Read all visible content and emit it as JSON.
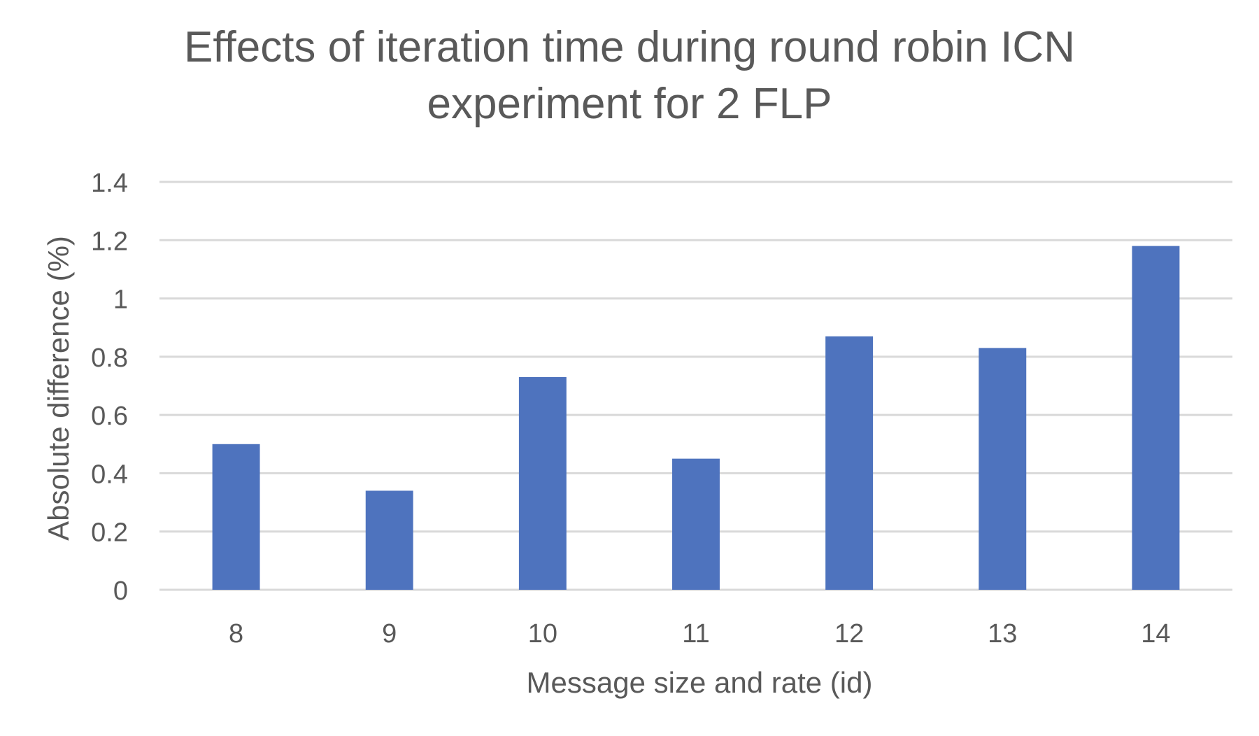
{
  "chart_data": {
    "type": "bar",
    "title": "Effects of iteration time during round robin ICN\nexperiment for 2 FLP",
    "xlabel": "Message size and rate (id)",
    "ylabel": "Absolute difference (%)",
    "categories": [
      "8",
      "9",
      "10",
      "11",
      "12",
      "13",
      "14"
    ],
    "values": [
      0.5,
      0.34,
      0.73,
      0.45,
      0.87,
      0.83,
      1.18
    ],
    "ylim": [
      0,
      1.4
    ],
    "yticks": [
      "0",
      "0.2",
      "0.4",
      "0.6",
      "0.8",
      "1",
      "1.2",
      "1.4"
    ],
    "grid": true,
    "legend": "none",
    "bar_color": "#4e73be",
    "grid_color": "#d9d9d9",
    "text_color": "#595959"
  }
}
